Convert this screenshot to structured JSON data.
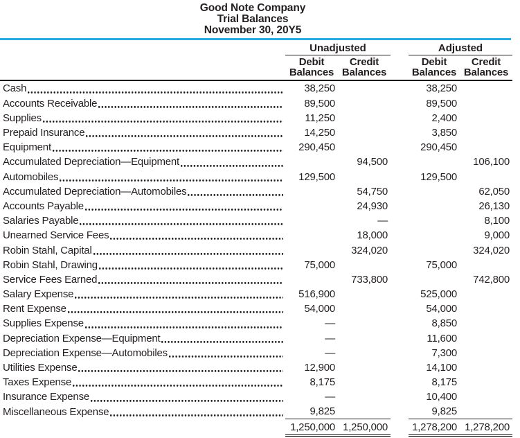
{
  "header": {
    "company": "Good Note Company",
    "report_title": "Trial Balances",
    "date": "November 30, 20Y5"
  },
  "columns": {
    "unadjusted_label": "Unadjusted",
    "adjusted_label": "Adjusted",
    "debit_word": "Debit",
    "credit_word": "Credit",
    "balances_word": "Balances"
  },
  "rows": [
    {
      "account": "Cash",
      "unadj_debit": "38,250",
      "unadj_credit": "",
      "adj_debit": "38,250",
      "adj_credit": ""
    },
    {
      "account": "Accounts Receivable",
      "unadj_debit": "89,500",
      "unadj_credit": "",
      "adj_debit": "89,500",
      "adj_credit": ""
    },
    {
      "account": "Supplies",
      "unadj_debit": "11,250",
      "unadj_credit": "",
      "adj_debit": "2,400",
      "adj_credit": ""
    },
    {
      "account": "Prepaid Insurance",
      "unadj_debit": "14,250",
      "unadj_credit": "",
      "adj_debit": "3,850",
      "adj_credit": ""
    },
    {
      "account": "Equipment",
      "unadj_debit": "290,450",
      "unadj_credit": "",
      "adj_debit": "290,450",
      "adj_credit": ""
    },
    {
      "account": "Accumulated Depreciation—Equipment",
      "unadj_debit": "",
      "unadj_credit": "94,500",
      "adj_debit": "",
      "adj_credit": "106,100"
    },
    {
      "account": "Automobiles",
      "unadj_debit": "129,500",
      "unadj_credit": "",
      "adj_debit": "129,500",
      "adj_credit": ""
    },
    {
      "account": "Accumulated Depreciation—Automobiles",
      "unadj_debit": "",
      "unadj_credit": "54,750",
      "adj_debit": "",
      "adj_credit": "62,050"
    },
    {
      "account": "Accounts Payable",
      "unadj_debit": "",
      "unadj_credit": "24,930",
      "adj_debit": "",
      "adj_credit": "26,130"
    },
    {
      "account": "Salaries Payable",
      "unadj_debit": "",
      "unadj_credit": "—",
      "adj_debit": "",
      "adj_credit": "8,100"
    },
    {
      "account": "Unearned Service Fees",
      "unadj_debit": "",
      "unadj_credit": "18,000",
      "adj_debit": "",
      "adj_credit": "9,000"
    },
    {
      "account": "Robin Stahl, Capital",
      "unadj_debit": "",
      "unadj_credit": "324,020",
      "adj_debit": "",
      "adj_credit": "324,020"
    },
    {
      "account": "Robin Stahl, Drawing",
      "unadj_debit": "75,000",
      "unadj_credit": "",
      "adj_debit": "75,000",
      "adj_credit": ""
    },
    {
      "account": "Service Fees Earned",
      "unadj_debit": "",
      "unadj_credit": "733,800",
      "adj_debit": "",
      "adj_credit": "742,800"
    },
    {
      "account": "Salary Expense",
      "unadj_debit": "516,900",
      "unadj_credit": "",
      "adj_debit": "525,000",
      "adj_credit": ""
    },
    {
      "account": "Rent Expense",
      "unadj_debit": "54,000",
      "unadj_credit": "",
      "adj_debit": "54,000",
      "adj_credit": ""
    },
    {
      "account": "Supplies Expense",
      "unadj_debit": "—",
      "unadj_credit": "",
      "adj_debit": "8,850",
      "adj_credit": ""
    },
    {
      "account": "Depreciation Expense—Equipment",
      "unadj_debit": "—",
      "unadj_credit": "",
      "adj_debit": "11,600",
      "adj_credit": ""
    },
    {
      "account": "Depreciation Expense—Automobiles",
      "unadj_debit": "—",
      "unadj_credit": "",
      "adj_debit": "7,300",
      "adj_credit": ""
    },
    {
      "account": "Utilities Expense",
      "unadj_debit": "12,900",
      "unadj_credit": "",
      "adj_debit": "14,100",
      "adj_credit": ""
    },
    {
      "account": "Taxes Expense",
      "unadj_debit": "8,175",
      "unadj_credit": "",
      "adj_debit": "8,175",
      "adj_credit": ""
    },
    {
      "account": "Insurance Expense",
      "unadj_debit": "—",
      "unadj_credit": "",
      "adj_debit": "10,400",
      "adj_credit": ""
    },
    {
      "account": "Miscellaneous Expense",
      "unadj_debit": "9,825",
      "unadj_credit": "",
      "adj_debit": "9,825",
      "adj_credit": ""
    }
  ],
  "totals": {
    "unadj_debit": "1,250,000",
    "unadj_credit": "1,250,000",
    "adj_debit": "1,278,200",
    "adj_credit": "1,278,200"
  },
  "colors": {
    "accent_rule": "#27aae1",
    "heavy_rule": "#1a1a1a",
    "text": "#231f20"
  }
}
